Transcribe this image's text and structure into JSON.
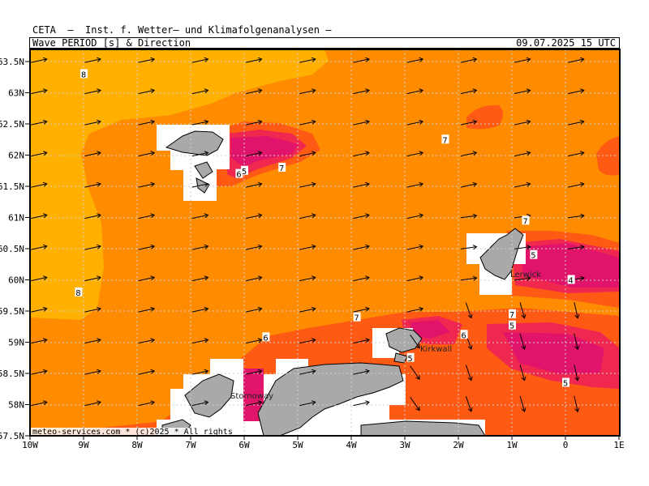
{
  "header": {
    "organization": "CETA  —  Inst. f. Wetter— und Klimafolgenanalysen —",
    "parameter": "Wave_PERIOD_[s]_&_Direction",
    "valid_time": "09.07.2025 15 UTC"
  },
  "footer": {
    "credit": "meteo-services.com  *  (c)2025  *  All rights"
  },
  "axes": {
    "lat_labels": [
      "63.5N",
      "63N",
      "62.5N",
      "62N",
      "61.5N",
      "61N",
      "60.5N",
      "60N",
      "59.5N",
      "59N",
      "58.5N",
      "58N",
      "57.5N"
    ],
    "lon_labels": [
      "10W",
      "9W",
      "8W",
      "7W",
      "6W",
      "5W",
      "4W",
      "3W",
      "2W",
      "1W",
      "0",
      "1E"
    ]
  },
  "places": [
    "Lerwick",
    "Kirkwall",
    "Stornoway"
  ],
  "contour_labels": [
    {
      "text": "8",
      "lon": -9.0,
      "lat": 63.3
    },
    {
      "text": "8",
      "lon": -9.1,
      "lat": 59.8
    },
    {
      "text": "7",
      "lon": -2.25,
      "lat": 62.25
    },
    {
      "text": "7",
      "lon": -5.3,
      "lat": 61.8
    },
    {
      "text": "6",
      "lon": -6.1,
      "lat": 61.7
    },
    {
      "text": "5",
      "lon": -6.0,
      "lat": 61.75
    },
    {
      "text": "7",
      "lon": -0.75,
      "lat": 60.95
    },
    {
      "text": "5",
      "lon": -0.6,
      "lat": 60.4
    },
    {
      "text": "4",
      "lon": 0.1,
      "lat": 60.0
    },
    {
      "text": "7",
      "lon": -3.9,
      "lat": 59.4
    },
    {
      "text": "7",
      "lon": -1.0,
      "lat": 59.45
    },
    {
      "text": "5",
      "lon": -1.0,
      "lat": 59.27
    },
    {
      "text": "6",
      "lon": -5.6,
      "lat": 59.08
    },
    {
      "text": "6",
      "lon": -1.9,
      "lat": 59.12
    },
    {
      "text": "5",
      "lon": -2.9,
      "lat": 58.75
    },
    {
      "text": "5",
      "lon": 0.0,
      "lat": 58.35
    }
  ],
  "colors": {
    "period_8_plus": "#ffb000",
    "period_7_8": "#ff8c00",
    "period_6_7": "#ff5a14",
    "period_5_6": "#f02850",
    "period_below_5": "#e0146a",
    "land": "#a9a9a9",
    "masked": "#ffffff"
  }
}
